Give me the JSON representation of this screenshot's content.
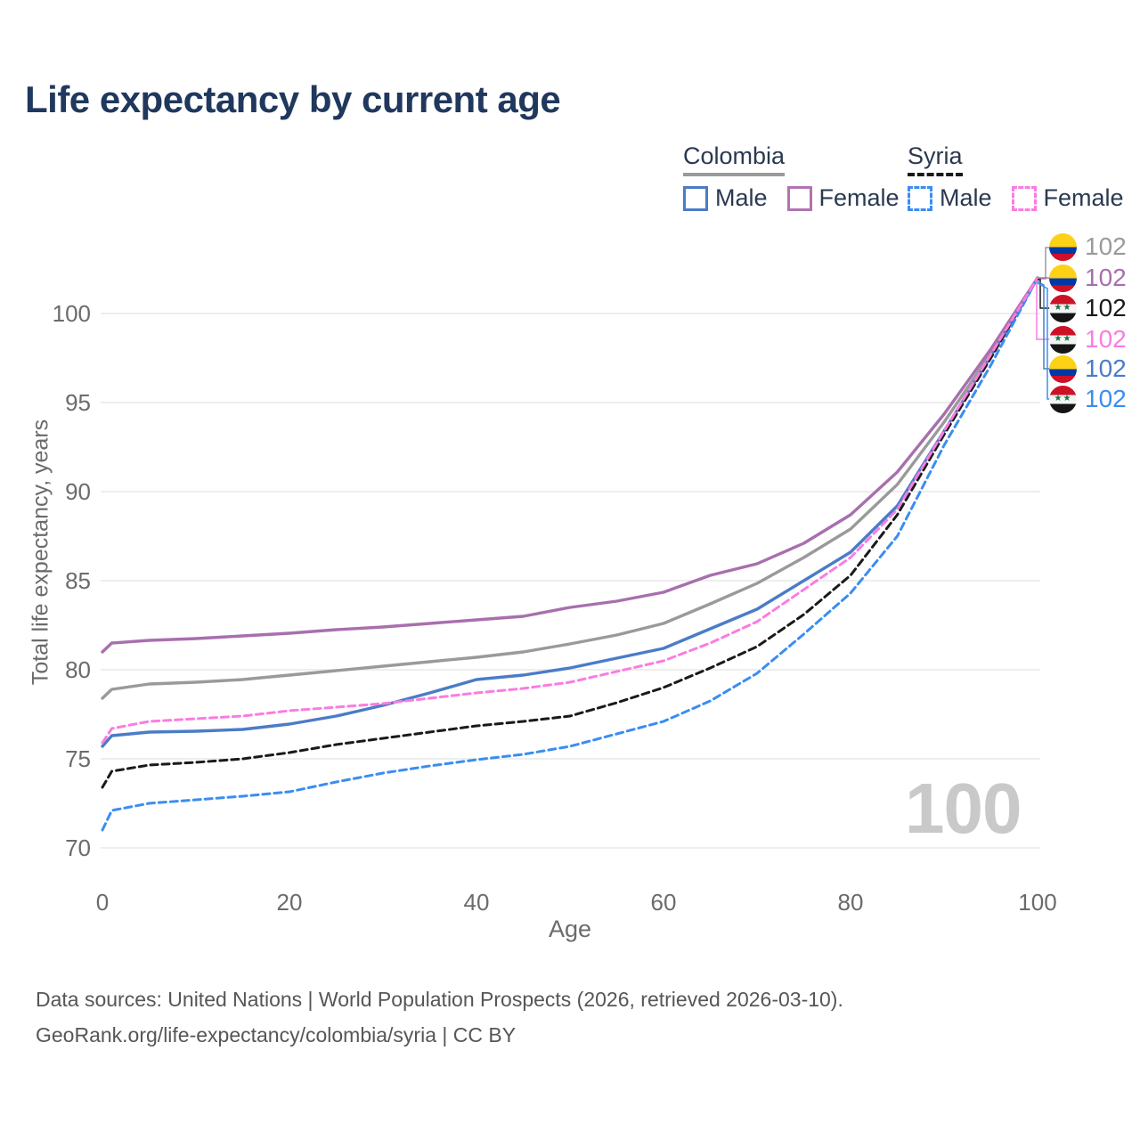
{
  "age_counter": "100",
  "chart_data": {
    "type": "line",
    "title": "Life expectancy by current age",
    "xlabel": "Age",
    "ylabel": "Total life expectancy, years",
    "xlim": [
      0,
      100
    ],
    "ylim": [
      69.5,
      102.5
    ],
    "x_ticks": [
      0,
      20,
      40,
      60,
      80,
      100
    ],
    "y_ticks": [
      70,
      75,
      80,
      85,
      90,
      95,
      100
    ],
    "grid": "horizontal-only",
    "legend_position": "top-right",
    "ages": [
      0,
      1,
      5,
      10,
      15,
      20,
      25,
      30,
      35,
      40,
      45,
      50,
      55,
      60,
      65,
      70,
      75,
      80,
      85,
      90,
      95,
      100
    ],
    "series": [
      {
        "id": "colombia_all",
        "country": "Colombia",
        "group": "All",
        "color": "#9a9a9a",
        "dashed": false,
        "values": [
          78.4,
          78.9,
          79.2,
          79.3,
          79.45,
          79.7,
          79.95,
          80.2,
          80.45,
          80.7,
          81.0,
          81.45,
          81.95,
          82.6,
          83.7,
          84.85,
          86.3,
          87.9,
          90.4,
          93.9,
          97.75,
          102
        ]
      },
      {
        "id": "colombia_male",
        "country": "Colombia",
        "group": "Male",
        "color": "#4a7cc7",
        "dashed": false,
        "values": [
          75.7,
          76.3,
          76.5,
          76.55,
          76.65,
          76.95,
          77.4,
          78.0,
          78.7,
          79.45,
          79.7,
          80.1,
          80.65,
          81.2,
          82.3,
          83.4,
          85.0,
          86.6,
          89.2,
          93.4,
          97.6,
          102
        ]
      },
      {
        "id": "colombia_female",
        "country": "Colombia",
        "group": "Female",
        "color": "#a86fae",
        "dashed": false,
        "values": [
          81.0,
          81.5,
          81.65,
          81.75,
          81.9,
          82.05,
          82.25,
          82.4,
          82.6,
          82.8,
          83.0,
          83.5,
          83.85,
          84.35,
          85.3,
          85.95,
          87.1,
          88.7,
          91.1,
          94.35,
          98.0,
          102
        ]
      },
      {
        "id": "syria_all",
        "country": "Syria",
        "group": "All",
        "color": "#1a1a1a",
        "dashed": true,
        "values": [
          73.4,
          74.3,
          74.65,
          74.8,
          75.0,
          75.35,
          75.8,
          76.15,
          76.5,
          76.85,
          77.1,
          77.4,
          78.15,
          79.0,
          80.1,
          81.3,
          83.1,
          85.3,
          88.7,
          93.2,
          97.5,
          102
        ]
      },
      {
        "id": "syria_male",
        "country": "Syria",
        "group": "Male",
        "color": "#3a8df2",
        "dashed": true,
        "values": [
          71.0,
          72.1,
          72.5,
          72.7,
          72.9,
          73.15,
          73.7,
          74.2,
          74.6,
          74.95,
          75.25,
          75.7,
          76.4,
          77.1,
          78.25,
          79.8,
          82.0,
          84.3,
          87.5,
          92.6,
          97.1,
          102
        ]
      },
      {
        "id": "syria_female",
        "country": "Syria",
        "group": "Female",
        "color": "#fb7ce0",
        "dashed": true,
        "values": [
          75.9,
          76.7,
          77.1,
          77.25,
          77.4,
          77.7,
          77.9,
          78.1,
          78.4,
          78.7,
          78.95,
          79.3,
          79.9,
          80.5,
          81.5,
          82.7,
          84.5,
          86.3,
          89.0,
          93.4,
          97.7,
          102
        ]
      }
    ]
  },
  "legend": {
    "groups": [
      {
        "country": "Colombia",
        "underline": "solid",
        "underline_color": "#9a9a9a",
        "items": [
          {
            "label": "Male",
            "color": "#4a7cc7",
            "dashed": false
          },
          {
            "label": "Female",
            "color": "#b273b0",
            "dashed": false
          }
        ]
      },
      {
        "country": "Syria",
        "underline": "dashed",
        "underline_color": "#1a1a1a",
        "items": [
          {
            "label": "Male",
            "color": "#3a8df2",
            "dashed": true
          },
          {
            "label": "Female",
            "color": "#fb7ce0",
            "dashed": true
          }
        ]
      }
    ]
  },
  "right_labels": [
    {
      "flag": "colombia",
      "series": "colombia_all",
      "value": "102"
    },
    {
      "flag": "colombia",
      "series": "colombia_female",
      "value": "102"
    },
    {
      "flag": "syria",
      "series": "syria_all",
      "value": "102"
    },
    {
      "flag": "syria",
      "series": "syria_female",
      "value": "102"
    },
    {
      "flag": "colombia",
      "series": "colombia_male",
      "value": "102"
    },
    {
      "flag": "syria",
      "series": "syria_male",
      "value": "102"
    }
  ],
  "flags": {
    "colombia": {
      "yellow": "#FCD116",
      "blue": "#0038A8",
      "red": "#CE1126"
    },
    "syria": {
      "red": "#CE1126",
      "white": "#F4F4F4",
      "black": "#151515",
      "green": "#0E7A3D"
    }
  },
  "notes": {
    "line1": "Data sources: United Nations | World Population Prospects (2026, retrieved 2026-03-10).",
    "line2": "GeoRank.org/life-expectancy/colombia/syria | CC BY"
  }
}
